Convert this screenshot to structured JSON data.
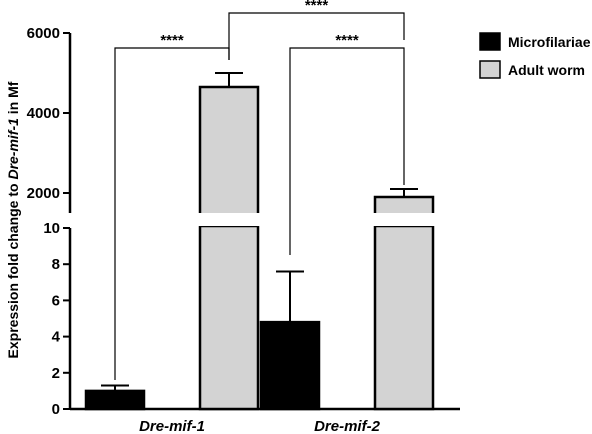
{
  "chart_data": {
    "type": "bar",
    "axis_style": "broken",
    "categories": [
      "Dre-mif-1",
      "Dre-mif-2"
    ],
    "series": [
      {
        "name": "Microfilariae",
        "color": "#000000",
        "values": [
          1.0,
          4.8
        ],
        "errors": [
          0.3,
          2.8
        ]
      },
      {
        "name": "Adult worm",
        "color": "#d3d3d3",
        "values": [
          4650,
          1900
        ],
        "errors": [
          350,
          200
        ]
      }
    ],
    "ylabel_parts": [
      "Expression fold change to ",
      "Dre-mif-1",
      " in Mf"
    ],
    "y_segments": [
      {
        "range": [
          0,
          10
        ],
        "ticks": [
          0,
          2,
          4,
          6,
          8,
          10
        ],
        "tick_labels": [
          "0",
          "2",
          "4",
          "6",
          "8",
          "10"
        ]
      },
      {
        "range": [
          1500,
          6000
        ],
        "ticks": [
          2000,
          4000,
          6000
        ],
        "tick_labels": [
          "2000",
          "4000",
          "6000"
        ]
      }
    ],
    "significance": [
      {
        "label": "****",
        "from": "Dre-mif-1 Microfilariae",
        "to": "Dre-mif-1 Adult worm"
      },
      {
        "label": "****",
        "from": "Dre-mif-2 Microfilariae",
        "to": "Dre-mif-2 Adult worm"
      },
      {
        "label": "****",
        "from": "Dre-mif-1 Adult worm",
        "to": "Dre-mif-2 Adult worm"
      }
    ],
    "legend": {
      "position": "top-right",
      "entries": [
        "Microfilariae",
        "Adult worm"
      ]
    },
    "grid": false
  }
}
